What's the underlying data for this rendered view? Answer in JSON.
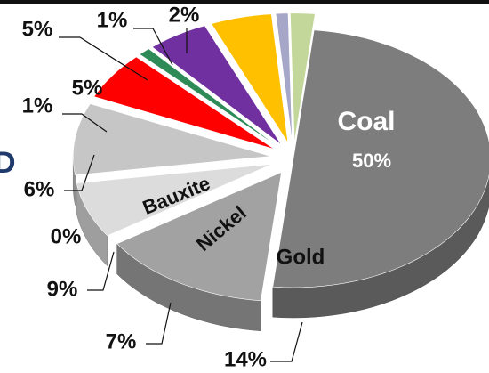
{
  "chart_data": {
    "type": "pie",
    "title": "",
    "slices": [
      {
        "name": "Coal",
        "value": 50,
        "label": "50%",
        "color": "#7d7d7d"
      },
      {
        "name": "Gold",
        "value": 14,
        "label": "14%",
        "color": "#a2a2a2"
      },
      {
        "name": "Nickel",
        "value": 7,
        "label": "7%",
        "color": "#dcdcdc"
      },
      {
        "name": "Bauxite",
        "value": 9,
        "label": "9%",
        "color": "#c6c6c6"
      },
      {
        "name": "",
        "value": 0,
        "label": "0%",
        "color": "#e6e6e6"
      },
      {
        "name": "",
        "value": 6,
        "label": "6%",
        "color": "#ff0000"
      },
      {
        "name": "",
        "value": 1,
        "label": "1%",
        "color": "#2e8b57"
      },
      {
        "name": "",
        "value": 5,
        "label": "5%",
        "color": "#7030a0"
      },
      {
        "name": "",
        "value": 5,
        "label": "5%",
        "color": "#ffc000"
      },
      {
        "name": "",
        "value": 1,
        "label": "1%",
        "color": "#a6a6c8"
      },
      {
        "name": "",
        "value": 2,
        "label": "2%",
        "color": "#c4d79b"
      }
    ],
    "legend": "none",
    "style": "3d-exploded"
  },
  "colors": {
    "top_rule": "#111111",
    "partial_glyph": "#1f3a6b"
  },
  "partial_glyph_text": "D"
}
